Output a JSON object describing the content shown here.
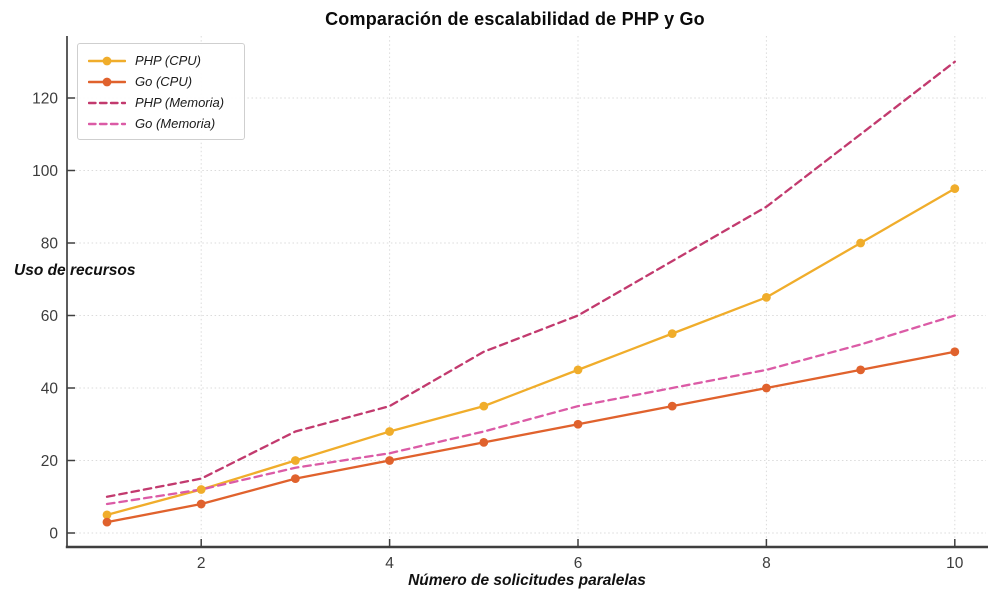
{
  "title": "Comparación de escalabilidad de PHP y Go",
  "palette": {
    "background": "#FFFFFF",
    "grid": "#DBDBDB",
    "axis": "#3F3F3F",
    "tick_text": "#3C3C3C",
    "title_text": "#0A0A0A"
  },
  "chart_data": {
    "type": "line",
    "title": "Comparación de escalabilidad de PHP y Go",
    "xlabel": "Número de solicitudes paralelas",
    "ylabel": "Uso de recursos",
    "x": [
      1,
      2,
      3,
      4,
      5,
      6,
      7,
      8,
      9,
      10
    ],
    "xticks": [
      "2",
      "4",
      "6",
      "8",
      "10"
    ],
    "xtick_values": [
      2,
      4,
      6,
      8,
      10
    ],
    "yticks": [
      "0",
      "20",
      "40",
      "60",
      "80",
      "100",
      "120"
    ],
    "ytick_values": [
      0,
      20,
      40,
      60,
      80,
      100,
      120
    ],
    "xlim": [
      0.55,
      10.33
    ],
    "ylim": [
      -4,
      136
    ],
    "grid": true,
    "legend_position": "top-left",
    "series": [
      {
        "name": "PHP (CPU)",
        "color": "#F0AD2B",
        "style": "solid",
        "marker": "circle",
        "values": [
          5,
          12,
          20,
          28,
          35,
          45,
          55,
          65,
          80,
          95
        ]
      },
      {
        "name": "Go (CPU)",
        "color": "#E0622D",
        "style": "solid",
        "marker": "circle",
        "values": [
          3,
          8,
          15,
          20,
          25,
          30,
          35,
          40,
          45,
          50
        ]
      },
      {
        "name": "PHP (Memoria)",
        "color": "#C23A6E",
        "style": "dashed",
        "marker": "none",
        "values": [
          10,
          15,
          28,
          35,
          50,
          60,
          75,
          90,
          110,
          130
        ]
      },
      {
        "name": "Go (Memoria)",
        "color": "#DB5BA6",
        "style": "dashed",
        "marker": "none",
        "values": [
          8,
          12,
          18,
          22,
          28,
          35,
          40,
          45,
          52,
          60
        ]
      }
    ]
  }
}
